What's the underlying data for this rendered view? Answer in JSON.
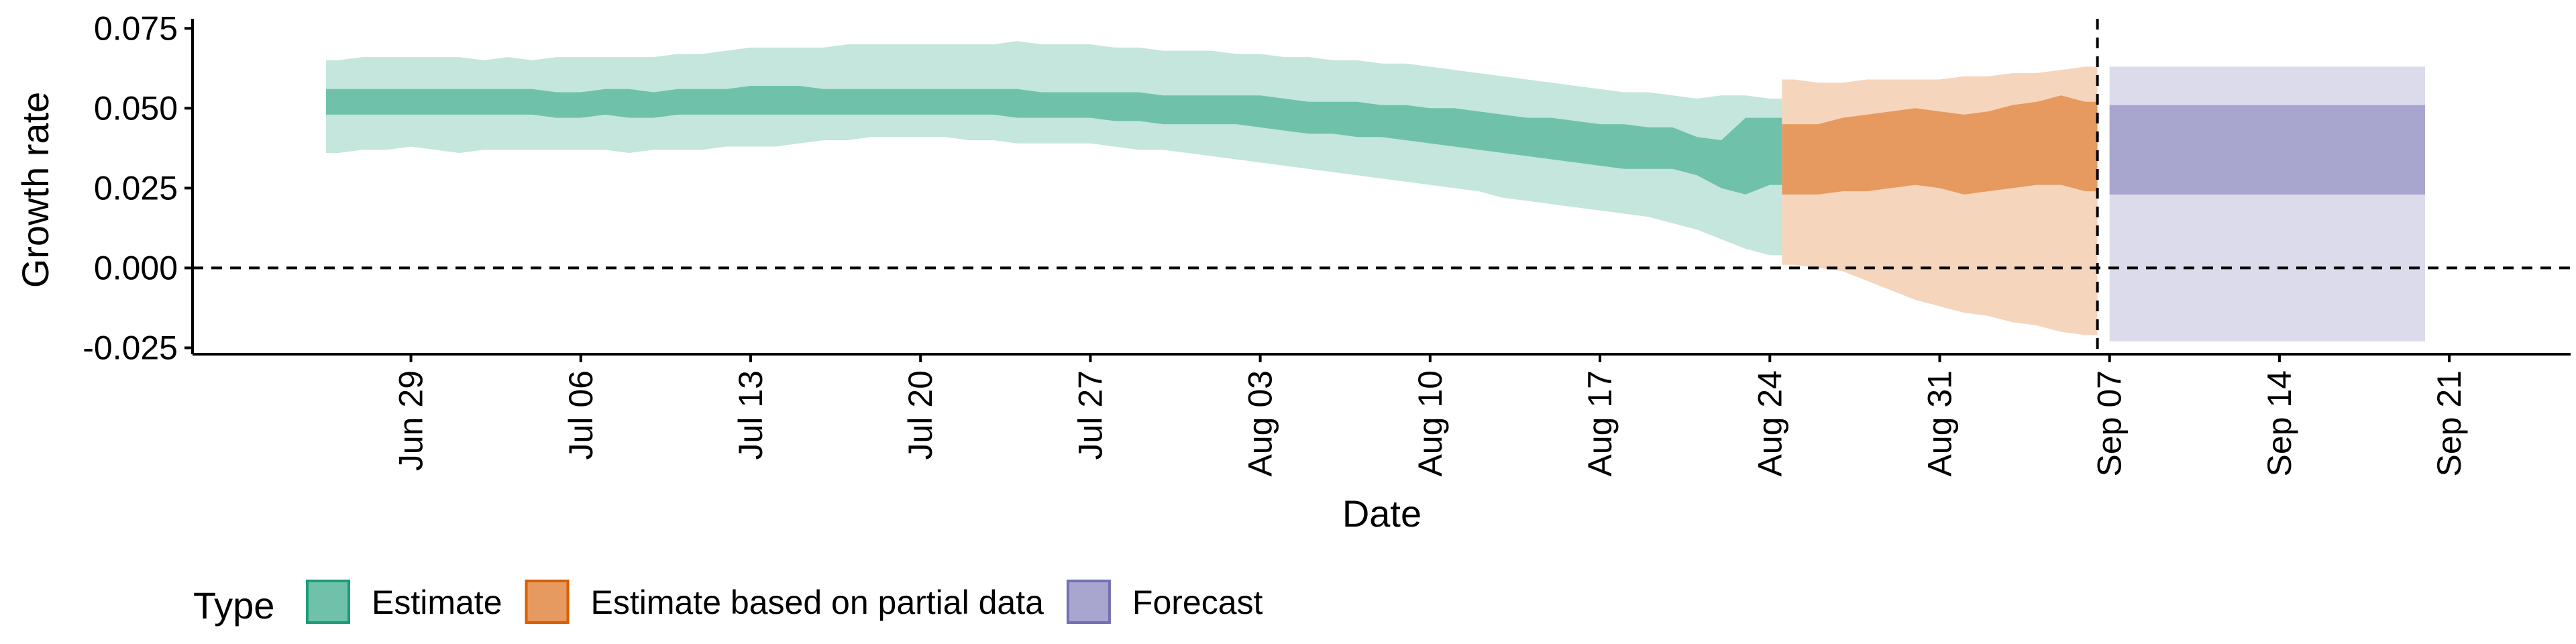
{
  "chart_data": {
    "type": "area",
    "xlabel": "Date",
    "ylabel": "Growth rate",
    "ylim": [
      -0.027,
      0.078
    ],
    "y_ticks": [
      -0.025,
      0.0,
      0.025,
      0.05,
      0.075
    ],
    "y_tick_labels": [
      "-0.025",
      "0.000",
      "0.025",
      "0.050",
      "0.075"
    ],
    "x_range": [
      "2020-06-20",
      "2020-09-26"
    ],
    "x_ticks": [
      "2020-06-29",
      "2020-07-06",
      "2020-07-13",
      "2020-07-20",
      "2020-07-27",
      "2020-08-03",
      "2020-08-10",
      "2020-08-17",
      "2020-08-24",
      "2020-08-31",
      "2020-09-07",
      "2020-09-14",
      "2020-09-21"
    ],
    "x_tick_labels": [
      "Jun 29",
      "Jul 06",
      "Jul 13",
      "Jul 20",
      "Jul 27",
      "Aug 03",
      "Aug 10",
      "Aug 17",
      "Aug 24",
      "Aug 31",
      "Sep 07",
      "Sep 14",
      "Sep 21"
    ],
    "reference_lines": {
      "horizontal_y": 0.0,
      "vertical_x": "2020-09-06"
    },
    "legend": {
      "title": "Type",
      "position": "bottom-left",
      "entries": [
        {
          "label": "Estimate",
          "fill": "#6fc2a9",
          "border": "#1b9e77"
        },
        {
          "label": "Estimate based on partial data",
          "fill": "#e69a5f",
          "border": "#d95f02"
        },
        {
          "label": "Forecast",
          "fill": "#a8a5cf",
          "border": "#7570b3"
        }
      ]
    },
    "series": [
      {
        "name": "Estimate",
        "color": "#1b9e77",
        "inner_fill": "#6fc2a9",
        "outer_fill": "#c4e6dc",
        "x": [
          "2020-06-26",
          "2020-06-27",
          "2020-06-28",
          "2020-06-29",
          "2020-06-30",
          "2020-07-01",
          "2020-07-02",
          "2020-07-03",
          "2020-07-04",
          "2020-07-05",
          "2020-07-06",
          "2020-07-07",
          "2020-07-08",
          "2020-07-09",
          "2020-07-10",
          "2020-07-11",
          "2020-07-12",
          "2020-07-13",
          "2020-07-14",
          "2020-07-15",
          "2020-07-16",
          "2020-07-17",
          "2020-07-18",
          "2020-07-19",
          "2020-07-20",
          "2020-07-21",
          "2020-07-22",
          "2020-07-23",
          "2020-07-24",
          "2020-07-25",
          "2020-07-26",
          "2020-07-27",
          "2020-07-28",
          "2020-07-29",
          "2020-07-30",
          "2020-07-31",
          "2020-08-01",
          "2020-08-02",
          "2020-08-03",
          "2020-08-04",
          "2020-08-05",
          "2020-08-06",
          "2020-08-07",
          "2020-08-08",
          "2020-08-09",
          "2020-08-10",
          "2020-08-11",
          "2020-08-12",
          "2020-08-13",
          "2020-08-14",
          "2020-08-15",
          "2020-08-16",
          "2020-08-17",
          "2020-08-18",
          "2020-08-19",
          "2020-08-20",
          "2020-08-21",
          "2020-08-22",
          "2020-08-23",
          "2020-08-24"
        ],
        "lower90": [
          0.036,
          0.037,
          0.037,
          0.038,
          0.037,
          0.036,
          0.037,
          0.037,
          0.037,
          0.037,
          0.037,
          0.037,
          0.036,
          0.037,
          0.037,
          0.037,
          0.038,
          0.038,
          0.038,
          0.039,
          0.04,
          0.04,
          0.041,
          0.041,
          0.041,
          0.041,
          0.04,
          0.04,
          0.039,
          0.039,
          0.039,
          0.039,
          0.038,
          0.037,
          0.037,
          0.036,
          0.035,
          0.034,
          0.033,
          0.032,
          0.031,
          0.03,
          0.029,
          0.028,
          0.027,
          0.026,
          0.025,
          0.024,
          0.022,
          0.021,
          0.02,
          0.019,
          0.018,
          0.017,
          0.016,
          0.014,
          0.012,
          0.009,
          0.006,
          0.004
        ],
        "lower50": [
          0.048,
          0.048,
          0.048,
          0.048,
          0.048,
          0.048,
          0.048,
          0.048,
          0.048,
          0.047,
          0.047,
          0.048,
          0.047,
          0.047,
          0.048,
          0.048,
          0.048,
          0.048,
          0.048,
          0.048,
          0.048,
          0.048,
          0.048,
          0.048,
          0.048,
          0.048,
          0.048,
          0.048,
          0.047,
          0.047,
          0.047,
          0.047,
          0.046,
          0.046,
          0.045,
          0.045,
          0.045,
          0.045,
          0.044,
          0.043,
          0.042,
          0.042,
          0.041,
          0.041,
          0.04,
          0.039,
          0.038,
          0.037,
          0.036,
          0.035,
          0.034,
          0.033,
          0.032,
          0.031,
          0.031,
          0.031,
          0.029,
          0.025,
          0.023,
          0.026
        ],
        "upper50": [
          0.056,
          0.056,
          0.056,
          0.056,
          0.056,
          0.056,
          0.056,
          0.056,
          0.056,
          0.055,
          0.055,
          0.056,
          0.056,
          0.055,
          0.056,
          0.056,
          0.056,
          0.057,
          0.057,
          0.057,
          0.056,
          0.056,
          0.056,
          0.056,
          0.056,
          0.056,
          0.056,
          0.056,
          0.056,
          0.055,
          0.055,
          0.055,
          0.055,
          0.055,
          0.054,
          0.054,
          0.054,
          0.054,
          0.054,
          0.053,
          0.052,
          0.052,
          0.052,
          0.051,
          0.051,
          0.05,
          0.05,
          0.049,
          0.048,
          0.047,
          0.047,
          0.046,
          0.045,
          0.045,
          0.044,
          0.044,
          0.041,
          0.04,
          0.047,
          0.047
        ],
        "upper90": [
          0.065,
          0.066,
          0.066,
          0.066,
          0.066,
          0.066,
          0.065,
          0.066,
          0.065,
          0.066,
          0.066,
          0.066,
          0.066,
          0.066,
          0.067,
          0.067,
          0.068,
          0.069,
          0.069,
          0.069,
          0.069,
          0.07,
          0.07,
          0.07,
          0.07,
          0.07,
          0.07,
          0.07,
          0.071,
          0.07,
          0.07,
          0.07,
          0.069,
          0.069,
          0.068,
          0.068,
          0.068,
          0.067,
          0.067,
          0.066,
          0.066,
          0.065,
          0.065,
          0.064,
          0.064,
          0.063,
          0.062,
          0.061,
          0.06,
          0.059,
          0.058,
          0.057,
          0.056,
          0.055,
          0.055,
          0.054,
          0.053,
          0.054,
          0.054,
          0.053
        ]
      },
      {
        "name": "Estimate based on partial data",
        "color": "#d95f02",
        "inner_fill": "#e69a5f",
        "outer_fill": "#f6d5bd",
        "x": [
          "2020-08-25",
          "2020-08-26",
          "2020-08-27",
          "2020-08-28",
          "2020-08-29",
          "2020-08-30",
          "2020-08-31",
          "2020-09-01",
          "2020-09-02",
          "2020-09-03",
          "2020-09-04",
          "2020-09-05",
          "2020-09-06"
        ],
        "lower90": [
          0.001,
          0.0,
          -0.001,
          -0.004,
          -0.007,
          -0.01,
          -0.012,
          -0.014,
          -0.015,
          -0.017,
          -0.018,
          -0.02,
          -0.021
        ],
        "lower50": [
          0.023,
          0.023,
          0.024,
          0.024,
          0.025,
          0.026,
          0.025,
          0.023,
          0.024,
          0.025,
          0.026,
          0.026,
          0.024
        ],
        "upper50": [
          0.045,
          0.045,
          0.047,
          0.048,
          0.049,
          0.05,
          0.049,
          0.048,
          0.049,
          0.051,
          0.052,
          0.054,
          0.052
        ],
        "upper90": [
          0.059,
          0.058,
          0.058,
          0.059,
          0.059,
          0.059,
          0.059,
          0.06,
          0.06,
          0.061,
          0.061,
          0.062,
          0.063
        ]
      },
      {
        "name": "Forecast",
        "color": "#7570b3",
        "inner_fill": "#a8a5cf",
        "outer_fill": "#dcdbec",
        "x": [
          "2020-09-07",
          "2020-09-20"
        ],
        "lower90": [
          -0.023,
          -0.023
        ],
        "lower50": [
          0.023,
          0.023
        ],
        "upper50": [
          0.051,
          0.051
        ],
        "upper90": [
          0.063,
          0.063
        ]
      }
    ]
  }
}
